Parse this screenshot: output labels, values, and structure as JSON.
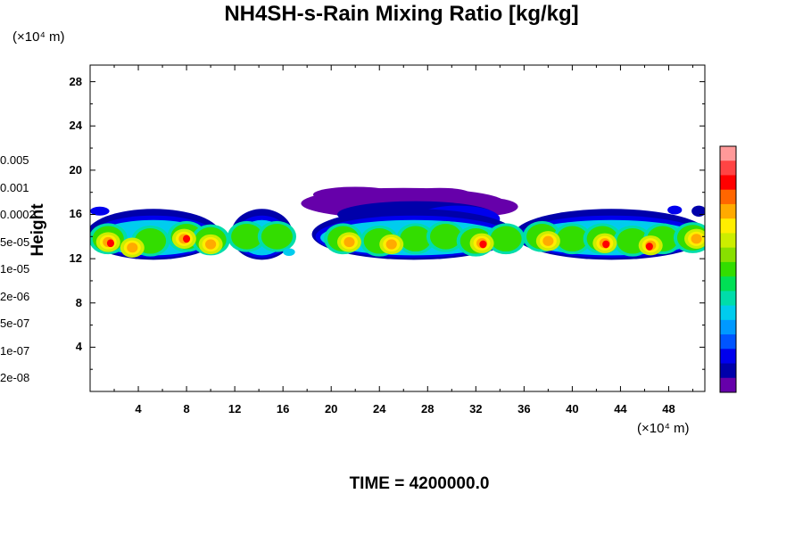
{
  "chart_data": {
    "type": "heatmap",
    "title": "NH4SH-s-Rain Mixing Ratio [kg/kg]",
    "xlabel": "",
    "ylabel": "Height",
    "x_unit": "(×10⁴ m)",
    "y_unit": "(×10⁴ m)",
    "xlim": [
      0,
      51
    ],
    "ylim": [
      0,
      29.5
    ],
    "x_ticks": [
      "4",
      "8",
      "12",
      "16",
      "20",
      "24",
      "28",
      "32",
      "36",
      "40",
      "44",
      "48"
    ],
    "y_ticks": [
      "4",
      "8",
      "12",
      "16",
      "20",
      "24",
      "28"
    ],
    "colorbar": {
      "labels": [
        "0.005",
        "0.001",
        "0.0002",
        "5e-05",
        "1e-05",
        "2e-06",
        "5e-07",
        "1e-07",
        "2e-08"
      ],
      "colors": [
        "#ff9999",
        "#ff4444",
        "#ff0000",
        "#ff6600",
        "#ffaa00",
        "#ffee00",
        "#ccee00",
        "#88e000",
        "#33dd00",
        "#00e055",
        "#00ddaa",
        "#00ccee",
        "#0099ff",
        "#0055ff",
        "#0000ee",
        "#0000aa",
        "#6600aa"
      ]
    },
    "regions": [
      {
        "x": [
          0,
          10.5
        ],
        "y": [
          12.0,
          16.5
        ],
        "level": "1e-05"
      },
      {
        "x": [
          12,
          16.5
        ],
        "y": [
          12.6,
          15.8
        ],
        "level": "5e-05"
      },
      {
        "x": [
          19,
          28
        ],
        "y": [
          12.2,
          15.5
        ],
        "level": "1e-05"
      },
      {
        "x": [
          18,
          35
        ],
        "y": [
          15.5,
          18.5
        ],
        "level": "2e-08"
      },
      {
        "x": [
          31,
          34
        ],
        "y": [
          12.5,
          15.5
        ],
        "level": "5e-05"
      },
      {
        "x": [
          36,
          51
        ],
        "y": [
          12.0,
          16.5
        ],
        "level": "1e-05"
      }
    ]
  },
  "footer": {
    "time_label": "TIME = 4200000.0"
  }
}
